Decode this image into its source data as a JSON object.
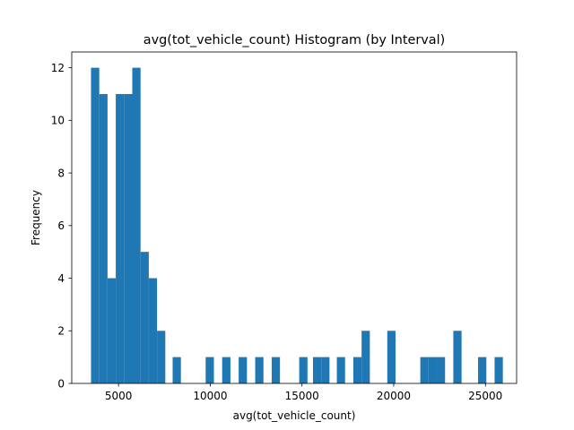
{
  "chart_data": {
    "type": "bar",
    "title": "avg(tot_vehicle_count) Histogram (by Interval)",
    "xlabel": "avg(tot_vehicle_count)",
    "ylabel": "Frequency",
    "xlim": [
      2450,
      26700
    ],
    "ylim": [
      0,
      12.6
    ],
    "xticks": [
      5000,
      10000,
      15000,
      20000,
      25000
    ],
    "yticks": [
      0,
      2,
      4,
      6,
      8,
      10,
      12
    ],
    "bar_color": "#1f77b4",
    "grid": false,
    "bins": [
      {
        "x0": 3500,
        "x1": 3950,
        "value": 12
      },
      {
        "x0": 3950,
        "x1": 4400,
        "value": 11
      },
      {
        "x0": 4400,
        "x1": 4850,
        "value": 4
      },
      {
        "x0": 4850,
        "x1": 5300,
        "value": 11
      },
      {
        "x0": 5300,
        "x1": 5750,
        "value": 11
      },
      {
        "x0": 5750,
        "x1": 6200,
        "value": 12
      },
      {
        "x0": 6200,
        "x1": 6650,
        "value": 5
      },
      {
        "x0": 6650,
        "x1": 7100,
        "value": 4
      },
      {
        "x0": 7100,
        "x1": 7550,
        "value": 2
      },
      {
        "x0": 7950,
        "x1": 8400,
        "value": 1
      },
      {
        "x0": 9750,
        "x1": 10200,
        "value": 1
      },
      {
        "x0": 10650,
        "x1": 11100,
        "value": 1
      },
      {
        "x0": 11550,
        "x1": 12000,
        "value": 1
      },
      {
        "x0": 12450,
        "x1": 12900,
        "value": 1
      },
      {
        "x0": 13350,
        "x1": 13800,
        "value": 1
      },
      {
        "x0": 14850,
        "x1": 15300,
        "value": 1
      },
      {
        "x0": 15600,
        "x1": 16050,
        "value": 1
      },
      {
        "x0": 16050,
        "x1": 16500,
        "value": 1
      },
      {
        "x0": 16900,
        "x1": 17350,
        "value": 1
      },
      {
        "x0": 17800,
        "x1": 18250,
        "value": 1
      },
      {
        "x0": 18250,
        "x1": 18700,
        "value": 2
      },
      {
        "x0": 19650,
        "x1": 20100,
        "value": 2
      },
      {
        "x0": 21450,
        "x1": 21900,
        "value": 1
      },
      {
        "x0": 21900,
        "x1": 22350,
        "value": 1
      },
      {
        "x0": 22350,
        "x1": 22800,
        "value": 1
      },
      {
        "x0": 23250,
        "x1": 23700,
        "value": 2
      },
      {
        "x0": 24600,
        "x1": 25050,
        "value": 1
      },
      {
        "x0": 25500,
        "x1": 25950,
        "value": 1
      }
    ]
  }
}
